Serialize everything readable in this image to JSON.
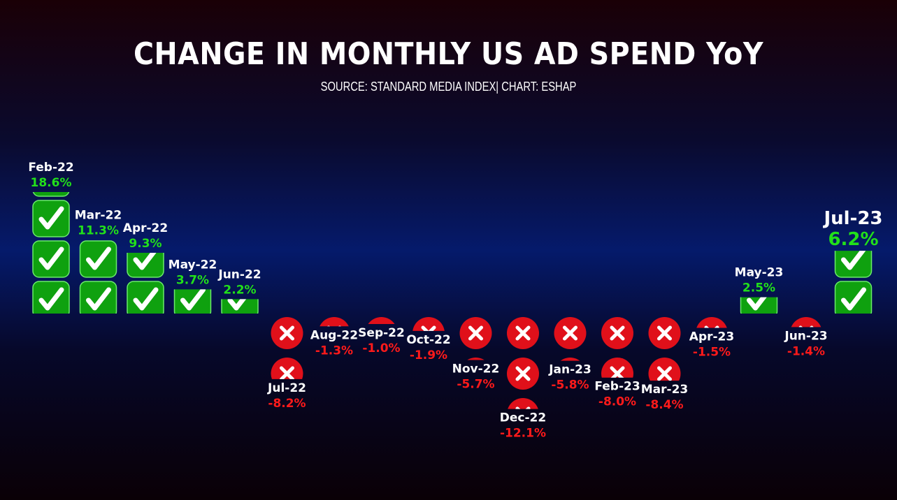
{
  "title": "CHANGE IN MONTHLY US AD SPEND YoY",
  "subtitle": "SOURCE: STANDARD MEDIA INDEX| CHART: ESHAP",
  "colors": {
    "positive": "#22e01a",
    "negative": "#ff1a1a",
    "check_box": "#0fa10f",
    "cross_circle": "#e0101a",
    "label": "#ffffff"
  },
  "icons": {
    "positive": "check-mark-icon",
    "negative": "cross-mark-icon"
  },
  "chart_data": {
    "type": "bar",
    "categories": [
      "Feb-22",
      "Mar-22",
      "Apr-22",
      "May-22",
      "Jun-22",
      "Jul-22",
      "Aug-22",
      "Sep-22",
      "Oct-22",
      "Nov-22",
      "Dec-22",
      "Jan-23",
      "Feb-23",
      "Mar-23",
      "Apr-23",
      "May-23",
      "Jun-23",
      "Jul-23"
    ],
    "values": [
      18.6,
      11.3,
      9.3,
      3.7,
      2.2,
      -8.2,
      -1.3,
      -1.0,
      -1.9,
      -5.7,
      -12.1,
      -5.8,
      -8.0,
      -8.4,
      -1.5,
      2.5,
      -1.4,
      6.2
    ],
    "value_labels": [
      "18.6%",
      "11.3%",
      "9.3%",
      "3.7%",
      "2.2%",
      "-8.2%",
      "-1.3%",
      "-1.0%",
      "-1.9%",
      "-5.7%",
      "-12.1%",
      "-5.8%",
      "-8.0%",
      "-8.4%",
      "-1.5%",
      "2.5%",
      "-1.4%",
      "6.2%"
    ],
    "highlight": "Jul-23",
    "unit": "%",
    "marks": "stacked emoji icons (check for positive, cross for negative)"
  }
}
